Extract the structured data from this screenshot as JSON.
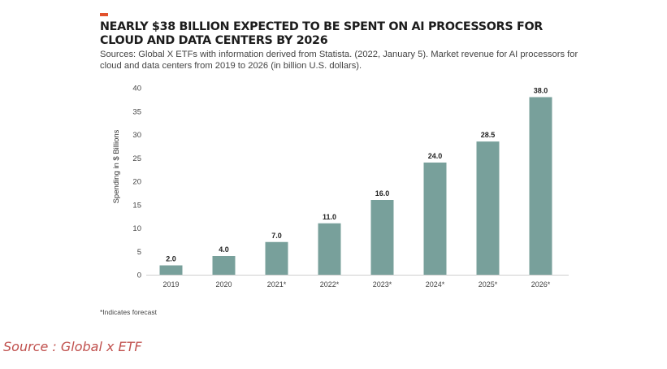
{
  "header": {
    "title": "NEARLY $38 BILLION EXPECTED TO BE SPENT ON AI PROCESSORS FOR CLOUD AND DATA CENTERS BY 2026",
    "subtitle": "Sources: Global X ETFs with information derived from Statista. (2022, January 5). Market revenue for AI processors for cloud and data centers from 2019 to 2026 (in billion U.S. dollars)."
  },
  "footnote": "*Indicates forecast",
  "source_caption": "Source : Global x ETF",
  "colors": {
    "accent": "#e2522d",
    "bar": "#78a09b",
    "source_text": "#c0504d"
  },
  "chart_data": {
    "type": "bar",
    "categories": [
      "2019",
      "2020",
      "2021*",
      "2022*",
      "2023*",
      "2024*",
      "2025*",
      "2026*"
    ],
    "values": [
      2.0,
      4.0,
      7.0,
      11.0,
      16.0,
      24.0,
      28.5,
      38.0
    ],
    "data_labels": [
      "2.0",
      "4.0",
      "7.0",
      "11.0",
      "16.0",
      "24.0",
      "28.5",
      "38.0"
    ],
    "ylabel": "Spending in $ Billions",
    "ylim": [
      0,
      40
    ],
    "yticks": [
      0,
      5,
      10,
      15,
      20,
      25,
      30,
      35,
      40
    ],
    "grid": false,
    "legend": "none"
  }
}
